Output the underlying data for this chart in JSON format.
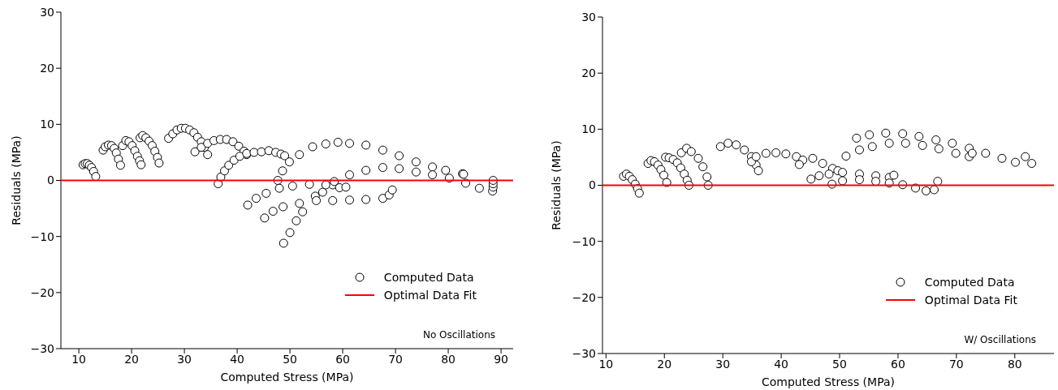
{
  "chart_data": [
    {
      "type": "scatter",
      "xlabel": "Computed Stress (MPa)",
      "ylabel": "Residuals (MPa)",
      "xlim": [
        6.6,
        92.3
      ],
      "ylim": [
        -30,
        30
      ],
      "xticks": [
        10,
        20,
        30,
        40,
        50,
        60,
        70,
        80,
        90
      ],
      "yticks": [
        {
          "value": -30,
          "label": "−30"
        },
        {
          "value": -20,
          "label": "−20"
        },
        {
          "value": -10,
          "label": "−10"
        },
        0,
        10,
        20,
        30
      ],
      "legend": "bottom right",
      "annotations": [
        "No Oscillations"
      ],
      "series": [
        {
          "name": "Computed Data",
          "color": "#000000",
          "marker": "circle",
          "x": [
            10.8,
            11.2,
            11.6,
            12.0,
            12.4,
            12.8,
            13.2,
            14.6,
            15.0,
            15.6,
            16.2,
            16.7,
            17.1,
            17.5,
            17.9,
            18.3,
            18.9,
            19.5,
            20.1,
            20.6,
            21.1,
            21.5,
            21.8,
            21.6,
            22.1,
            22.7,
            23.3,
            23.9,
            24.4,
            24.9,
            25.2,
            27.0,
            27.8,
            28.6,
            29.4,
            30.2,
            31.0,
            31.8,
            32.5,
            33.2,
            33.8,
            34.4,
            32.0,
            33.2,
            34.4,
            35.6,
            36.8,
            38.0,
            39.2,
            40.3,
            41.3,
            41.8,
            36.4,
            36.9,
            37.6,
            38.4,
            39.4,
            40.5,
            41.8,
            43.2,
            44.6,
            46.0,
            47.3,
            48.3,
            49.0,
            47.7,
            48.6,
            49.9,
            51.8,
            54.3,
            56.8,
            59.1,
            61.3,
            64.4,
            67.6,
            70.7,
            73.9,
            77.0,
            79.5,
            82.7,
            82.9,
            48.8,
            50.0,
            51.2,
            52.4,
            54.8,
            56.2,
            58.1,
            58.4,
            61.3,
            64.4,
            67.6,
            70.7,
            73.9,
            77.0,
            80.2,
            83.3,
            85.9,
            88.4,
            88.5,
            88.5,
            88.5,
            42.0,
            43.6,
            45.5,
            48.0,
            50.5,
            53.7,
            56.8,
            59.4,
            60.6,
            45.2,
            46.8,
            48.7,
            51.8,
            55.0,
            58.1,
            61.3,
            64.4,
            67.6,
            68.8,
            69.4
          ],
          "values": [
            2.8,
            3.0,
            3.0,
            2.7,
            2.3,
            1.6,
            0.7,
            5.4,
            6.0,
            6.3,
            6.2,
            5.7,
            4.9,
            3.8,
            2.7,
            6.2,
            7.1,
            6.9,
            6.2,
            5.3,
            4.3,
            3.5,
            2.8,
            7.6,
            8.0,
            7.6,
            7.0,
            6.2,
            5.2,
            4.1,
            3.1,
            7.5,
            8.3,
            9.0,
            9.3,
            9.3,
            9.0,
            8.5,
            7.7,
            6.9,
            5.9,
            4.6,
            5.1,
            5.9,
            6.6,
            7.1,
            7.3,
            7.3,
            6.9,
            6.1,
            5.2,
            4.6,
            -0.6,
            0.6,
            1.7,
            2.7,
            3.6,
            4.3,
            4.8,
            5.0,
            5.1,
            5.3,
            5.0,
            4.7,
            4.4,
            0.0,
            1.7,
            3.3,
            4.6,
            6.0,
            6.5,
            6.8,
            6.6,
            6.3,
            5.4,
            4.4,
            3.3,
            2.4,
            1.8,
            1.2,
            1.1,
            -11.2,
            -9.3,
            -7.2,
            -5.6,
            -2.8,
            -2.1,
            -0.8,
            -0.2,
            1.0,
            1.8,
            2.3,
            2.1,
            1.5,
            1.0,
            0.4,
            -0.5,
            -1.4,
            -1.9,
            -1.2,
            -0.6,
            0.0,
            -4.4,
            -3.2,
            -2.3,
            -1.4,
            -1.0,
            -0.7,
            -0.8,
            -1.3,
            -1.2,
            -6.7,
            -5.5,
            -4.7,
            -4.1,
            -3.6,
            -3.6,
            -3.5,
            -3.4,
            -3.2,
            -2.6,
            -1.7
          ]
        },
        {
          "name": "Optimal Data Fit",
          "type": "line",
          "color": "#ff0000",
          "marker": "none",
          "x": [
            6.6,
            92.3
          ],
          "values": [
            0,
            0
          ]
        }
      ]
    },
    {
      "type": "scatter",
      "xlabel": "Computed Stress (MPa)",
      "ylabel": "Residuals (MPa)",
      "xlim": [
        9.4,
        86.7
      ],
      "ylim": [
        -30,
        30
      ],
      "xticks": [
        10,
        20,
        30,
        40,
        50,
        60,
        70,
        80
      ],
      "yticks": [
        {
          "value": -30,
          "label": "−30"
        },
        {
          "value": -20,
          "label": "−20"
        },
        {
          "value": -10,
          "label": "−10"
        },
        0,
        10,
        20,
        30
      ],
      "legend": "bottom right",
      "annotations": [
        "W/ Oscillations"
      ],
      "series": [
        {
          "name": "Computed Data",
          "color": "#000000",
          "marker": "circle",
          "x": [
            13.0,
            13.5,
            14.0,
            14.5,
            15.0,
            15.4,
            15.7,
            17.2,
            17.7,
            18.3,
            18.9,
            19.4,
            19.9,
            20.4,
            20.2,
            20.8,
            21.5,
            22.2,
            22.8,
            23.4,
            23.9,
            24.2,
            22.9,
            23.8,
            24.6,
            25.8,
            26.6,
            27.3,
            27.5,
            29.6,
            30.9,
            32.3,
            33.7,
            34.9,
            35.7,
            36.1,
            34.9,
            35.7,
            37.4,
            39.1,
            40.8,
            42.6,
            43.7,
            43.1,
            45.4,
            47.1,
            48.8,
            49.7,
            45.1,
            46.5,
            48.2,
            50.5,
            53.4,
            56.2,
            58.5,
            59.3,
            48.7,
            50.5,
            53.4,
            56.2,
            58.5,
            60.8,
            63.0,
            64.8,
            66.2,
            66.8,
            52.9,
            55.1,
            57.9,
            60.8,
            63.6,
            66.5,
            69.3,
            72.2,
            75.0,
            77.8,
            80.1,
            81.8,
            82.9,
            51.1,
            53.4,
            55.6,
            58.5,
            61.3,
            64.2,
            67.0,
            69.9,
            72.2,
            72.7
          ],
          "values": [
            1.6,
            2.0,
            1.6,
            1.0,
            0.2,
            -0.6,
            -1.4,
            3.9,
            4.4,
            4.2,
            3.6,
            2.8,
            1.8,
            0.5,
            5.0,
            4.9,
            4.6,
            4.0,
            3.1,
            2.0,
            0.9,
            0.0,
            5.8,
            6.6,
            6.0,
            4.8,
            3.3,
            1.5,
            0.0,
            6.9,
            7.5,
            7.2,
            6.3,
            5.1,
            3.6,
            2.6,
            4.2,
            5.1,
            5.7,
            5.8,
            5.6,
            5.1,
            4.5,
            3.7,
            4.8,
            3.9,
            3.0,
            2.6,
            1.1,
            1.7,
            2.0,
            2.3,
            2.0,
            1.7,
            1.4,
            1.8,
            0.2,
            0.8,
            1.0,
            0.7,
            0.4,
            0.1,
            -0.5,
            -1.0,
            -0.8,
            0.7,
            8.4,
            9.0,
            9.3,
            9.2,
            8.7,
            8.1,
            7.5,
            6.6,
            5.7,
            4.8,
            4.1,
            5.1,
            3.9,
            5.2,
            6.3,
            6.9,
            7.5,
            7.5,
            7.1,
            6.5,
            5.7,
            5.1,
            5.7
          ]
        },
        {
          "name": "Optimal Data Fit",
          "type": "line",
          "color": "#ff0000",
          "marker": "none",
          "x": [
            9.4,
            86.7
          ],
          "values": [
            0,
            0
          ]
        }
      ]
    }
  ]
}
